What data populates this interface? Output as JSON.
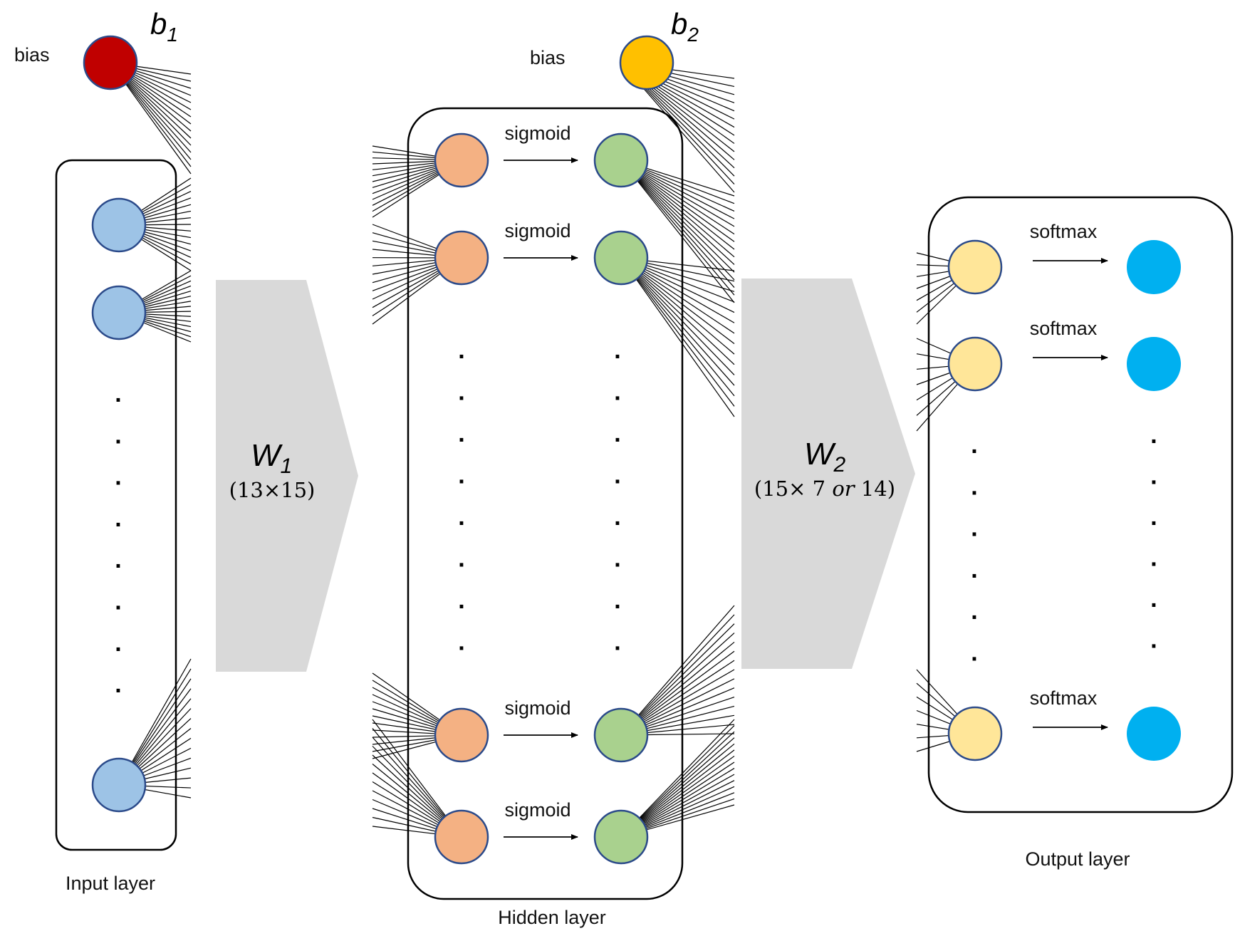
{
  "labels": {
    "input_layer": "Input layer",
    "hidden_layer": "Hidden layer",
    "output_layer": "Output layer",
    "bias1": "bias",
    "bias2": "bias",
    "b1_base": "b",
    "b1_sub": "1",
    "b2_base": "b",
    "b2_sub": "2",
    "w1_base": "W",
    "w1_sub": "1",
    "w1_dims": "(13×15)",
    "w2_base": "W",
    "w2_sub": "2",
    "w2_dims_pre": "(15× 7 ",
    "w2_dims_or": "or",
    "w2_dims_post": " 14)",
    "hidden_activation": "sigmoid",
    "output_activation": "softmax",
    "ellipsis_dot": "."
  },
  "colors": {
    "bias1": "#c00000",
    "bias2": "#ffc000",
    "input_node": "#9dc3e6",
    "hidden_pre": "#f4b183",
    "hidden_post": "#a9d18e",
    "output_pre": "#ffe699",
    "output_post": "#00b0f0",
    "arrow_block": "#d9d9d9",
    "node_stroke": "#2b4a8a"
  }
}
